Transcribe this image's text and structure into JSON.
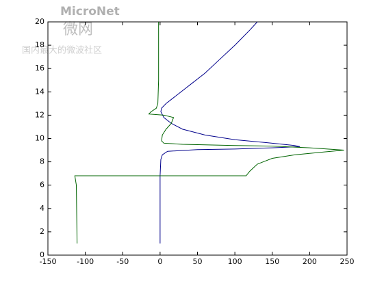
{
  "watermark": {
    "brand": "MicroNet",
    "brand_cn": "微网",
    "slogan": "国内最大的微波社区"
  },
  "chart_data": {
    "type": "line",
    "xlim": [
      -150,
      250
    ],
    "xticks": [
      -150,
      -100,
      -50,
      0,
      50,
      100,
      150,
      200,
      250
    ],
    "ylim": [
      0,
      20
    ],
    "yticks": [
      0,
      2,
      4,
      6,
      8,
      10,
      12,
      14,
      16,
      18,
      20
    ],
    "series": [
      {
        "color": "#00008b",
        "x": [
          0,
          0,
          1,
          3,
          10,
          50,
          100,
          150,
          187,
          180,
          150,
          100,
          60,
          30,
          15,
          5,
          1,
          2,
          8,
          20,
          40,
          60,
          80,
          100,
          120,
          130
        ],
        "values": [
          1,
          6.8,
          8.2,
          8.6,
          8.9,
          9.05,
          9.1,
          9.2,
          9.3,
          9.4,
          9.6,
          9.9,
          10.3,
          10.8,
          11.3,
          11.8,
          12.3,
          12.6,
          13,
          13.6,
          14.6,
          15.6,
          16.8,
          18,
          19.3,
          20
        ]
      },
      {
        "color": "#006400",
        "x": [
          -111,
          -112,
          -114,
          115,
          120,
          130,
          150,
          180,
          220,
          246,
          200,
          150,
          100,
          30,
          5,
          2,
          3,
          8,
          15,
          18,
          5,
          -15,
          -12,
          -5,
          -3,
          -2,
          -2,
          -2
        ],
        "values": [
          1,
          6,
          6.8,
          6.8,
          7.2,
          7.8,
          8.3,
          8.6,
          8.85,
          9,
          9.2,
          9.35,
          9.4,
          9.5,
          9.6,
          9.8,
          10.3,
          10.8,
          11.3,
          11.8,
          12,
          12.1,
          12.3,
          12.6,
          13,
          15,
          17,
          20
        ]
      }
    ]
  }
}
